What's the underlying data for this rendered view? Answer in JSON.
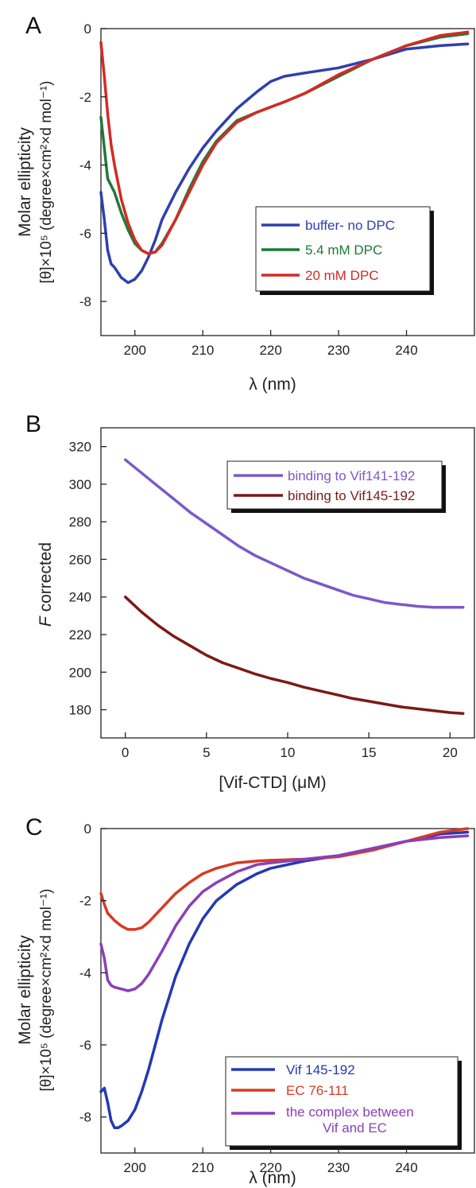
{
  "chart_data": [
    {
      "panel": "A",
      "type": "line",
      "ylabel_line1": "Molar ellipticity",
      "ylabel_line2": "[θ]×10⁵ (degree×cm²×d mol⁻¹)",
      "xlabel": "λ (nm)",
      "xlim": [
        195,
        250
      ],
      "ylim": [
        -9,
        0
      ],
      "xticks": [
        200,
        210,
        220,
        230,
        240
      ],
      "yticks": [
        0,
        -2,
        -4,
        -6,
        -8
      ],
      "legend_position": "middle-right",
      "series": [
        {
          "name": "buffer- no DPC",
          "color": "#2f3fb0",
          "x": [
            195,
            195.5,
            196,
            196.5,
            197,
            198,
            199,
            200,
            201,
            202,
            203,
            204,
            206,
            208,
            210,
            212,
            215,
            218,
            220,
            222,
            225,
            230,
            235,
            240,
            245,
            249
          ],
          "y": [
            -4.8,
            -5.6,
            -6.5,
            -6.9,
            -7.0,
            -7.3,
            -7.45,
            -7.35,
            -7.1,
            -6.7,
            -6.2,
            -5.6,
            -4.8,
            -4.1,
            -3.5,
            -3.0,
            -2.35,
            -1.85,
            -1.55,
            -1.4,
            -1.3,
            -1.15,
            -0.9,
            -0.6,
            -0.5,
            -0.45
          ]
        },
        {
          "name": "5.4 mM DPC",
          "color": "#1e7a3a",
          "x": [
            195,
            195.5,
            196,
            196.5,
            197,
            198,
            199,
            200,
            201,
            202,
            203,
            204,
            206,
            208,
            210,
            212,
            215,
            218,
            220,
            222,
            225,
            230,
            235,
            240,
            245,
            249
          ],
          "y": [
            -2.6,
            -3.5,
            -4.4,
            -4.6,
            -4.8,
            -5.4,
            -5.9,
            -6.3,
            -6.5,
            -6.6,
            -6.55,
            -6.3,
            -5.6,
            -4.7,
            -3.9,
            -3.3,
            -2.7,
            -2.45,
            -2.3,
            -2.15,
            -1.9,
            -1.4,
            -0.9,
            -0.5,
            -0.25,
            -0.15
          ]
        },
        {
          "name": "20 mM DPC",
          "color": "#d42a24",
          "x": [
            195,
            195.5,
            196,
            196.5,
            197,
            198,
            199,
            200,
            201,
            202,
            203,
            204,
            206,
            208,
            210,
            212,
            215,
            218,
            220,
            222,
            225,
            230,
            235,
            240,
            245,
            249
          ],
          "y": [
            -0.4,
            -1.4,
            -2.5,
            -3.4,
            -4.0,
            -5.0,
            -5.7,
            -6.2,
            -6.5,
            -6.6,
            -6.55,
            -6.35,
            -5.6,
            -4.8,
            -4.0,
            -3.35,
            -2.75,
            -2.45,
            -2.3,
            -2.15,
            -1.9,
            -1.35,
            -0.9,
            -0.5,
            -0.2,
            -0.1
          ]
        }
      ]
    },
    {
      "panel": "B",
      "type": "line",
      "ylabel_prefix": "F",
      "ylabel_suffix": " corrected",
      "xlabel": "[Vif-CTD] (μM)",
      "xlim": [
        -1.5,
        21.5
      ],
      "ylim": [
        165,
        330
      ],
      "xticks": [
        0,
        5,
        10,
        15,
        20
      ],
      "yticks": [
        180,
        200,
        220,
        240,
        260,
        280,
        300,
        320
      ],
      "legend_position": "top-right",
      "series": [
        {
          "name": "binding to Vif141-192",
          "color": "#7b59c9",
          "x": [
            0,
            1,
            2,
            3,
            4,
            5,
            6,
            7,
            8,
            9,
            10,
            11,
            12,
            13,
            14,
            15,
            16,
            17,
            18,
            19,
            20,
            20.8
          ],
          "y": [
            313,
            306,
            299,
            292,
            285,
            279,
            273,
            267,
            262,
            258,
            254,
            250,
            247,
            244,
            241,
            239,
            237,
            236,
            235,
            234.5,
            234.5,
            234.5
          ]
        },
        {
          "name": "binding to Vif145-192",
          "color": "#7a1a16",
          "x": [
            0,
            1,
            2,
            3,
            4,
            5,
            6,
            7,
            8,
            9,
            10,
            11,
            12,
            13,
            14,
            15,
            16,
            17,
            18,
            19,
            20,
            20.8
          ],
          "y": [
            240,
            232,
            225,
            219,
            214,
            209,
            205,
            202,
            199,
            196.5,
            194.5,
            192,
            190,
            188,
            186,
            184.5,
            183,
            181.5,
            180.5,
            179.5,
            178.5,
            178
          ]
        }
      ]
    },
    {
      "panel": "C",
      "type": "line",
      "ylabel_line1": "Molar ellipticity",
      "ylabel_line2": "[θ]×10⁵ (degree×cm²×d mol⁻¹)",
      "xlabel": "λ (nm)",
      "xlim": [
        195,
        250
      ],
      "ylim": [
        -9,
        0
      ],
      "xticks": [
        200,
        210,
        220,
        230,
        240
      ],
      "yticks": [
        0,
        -2,
        -4,
        -6,
        -8
      ],
      "legend_position": "bottom-right",
      "series": [
        {
          "name": "Vif 145-192",
          "color": "#2438b5",
          "x": [
            195,
            195.5,
            196,
            196.5,
            197,
            197.5,
            198,
            199,
            200,
            201,
            202,
            203,
            204,
            205,
            206,
            208,
            210,
            212,
            215,
            218,
            220,
            225,
            230,
            235,
            240,
            245,
            249
          ],
          "y": [
            -7.3,
            -7.2,
            -7.6,
            -8.1,
            -8.3,
            -8.3,
            -8.25,
            -8.1,
            -7.8,
            -7.3,
            -6.7,
            -6.0,
            -5.3,
            -4.7,
            -4.1,
            -3.2,
            -2.5,
            -2.0,
            -1.55,
            -1.25,
            -1.1,
            -0.9,
            -0.75,
            -0.55,
            -0.35,
            -0.15,
            -0.1
          ]
        },
        {
          "name": "EC 76-111",
          "color": "#d73a24",
          "x": [
            195,
            195.5,
            196,
            197,
            198,
            199,
            200,
            201,
            202,
            204,
            206,
            208,
            210,
            212,
            215,
            218,
            220,
            225,
            230,
            235,
            240,
            245,
            249
          ],
          "y": [
            -1.8,
            -2.1,
            -2.35,
            -2.55,
            -2.7,
            -2.8,
            -2.8,
            -2.75,
            -2.6,
            -2.2,
            -1.8,
            -1.5,
            -1.25,
            -1.1,
            -0.95,
            -0.9,
            -0.88,
            -0.85,
            -0.78,
            -0.6,
            -0.35,
            -0.1,
            0
          ]
        },
        {
          "name": "the complex between Vif and EC",
          "color": "#8b3fb8",
          "x": [
            195,
            195.5,
            196,
            196.5,
            197,
            198,
            199,
            200,
            201,
            202,
            204,
            206,
            208,
            210,
            212,
            215,
            218,
            220,
            225,
            230,
            235,
            240,
            245,
            249
          ],
          "y": [
            -3.2,
            -3.6,
            -4.2,
            -4.35,
            -4.4,
            -4.45,
            -4.5,
            -4.45,
            -4.3,
            -4.05,
            -3.4,
            -2.7,
            -2.15,
            -1.75,
            -1.5,
            -1.2,
            -1.0,
            -0.95,
            -0.85,
            -0.75,
            -0.55,
            -0.35,
            -0.25,
            -0.2
          ]
        }
      ]
    }
  ],
  "legend_extra_C": "Vif and EC",
  "legend_main_C": "the complex between"
}
